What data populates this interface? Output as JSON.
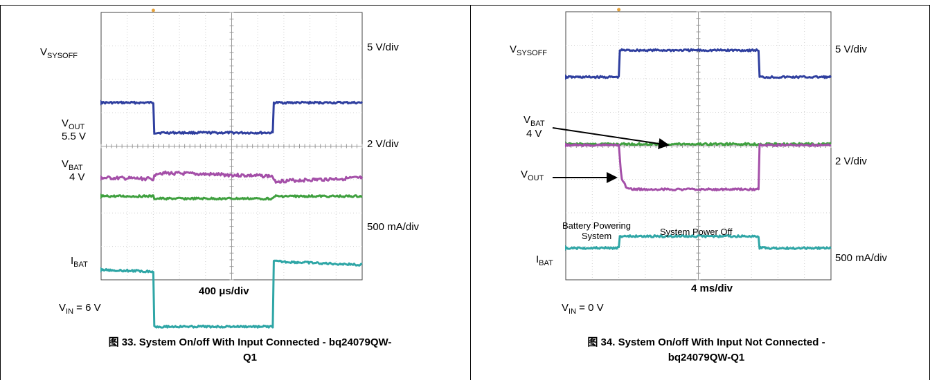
{
  "chart_data": [
    {
      "type": "line",
      "figure_label": "图 33. System On/off With Input Connected - bq24079QW-Q1",
      "figure_label_line1": "图 33. System On/off With Input Connected - bq24079QW-",
      "figure_label_line2": "Q1",
      "timebase": "400 μs/div",
      "condition": {
        "name": "V",
        "sub": "IN",
        "value": " = 6 V"
      },
      "divisions": {
        "x": 10,
        "y": 8
      },
      "series": [
        {
          "name": "V",
          "sub": "SYSOFF",
          "scale": "5 V/div",
          "color": "#2f3f9f",
          "points": [
            [
              0,
              2.7
            ],
            [
              2.0,
              2.7
            ],
            [
              2.0,
              3.6
            ],
            [
              6.6,
              3.6
            ],
            [
              6.6,
              2.7
            ],
            [
              10,
              2.7
            ]
          ],
          "noise": 0.03
        },
        {
          "name": "V",
          "sub": "OUT",
          "value": "5.5 V",
          "scale": "2 V/div",
          "color": "#a44fa8",
          "points": [
            [
              0,
              4.95
            ],
            [
              2.0,
              4.98
            ],
            [
              2.1,
              4.8
            ],
            [
              6.6,
              4.9
            ],
            [
              6.6,
              5.05
            ],
            [
              10,
              4.95
            ]
          ],
          "noise": 0.05
        },
        {
          "name": "V",
          "sub": "BAT",
          "value": "4 V",
          "scale": "",
          "color": "#3fa03f",
          "points": [
            [
              0,
              5.5
            ],
            [
              2.0,
              5.5
            ],
            [
              2.0,
              5.57
            ],
            [
              6.6,
              5.57
            ],
            [
              6.6,
              5.5
            ],
            [
              10,
              5.5
            ]
          ],
          "noise": 0.03
        },
        {
          "name": "I",
          "sub": "BAT",
          "scale": "500 mA/div",
          "color": "#2fa6a6",
          "points": [
            [
              0,
              7.7
            ],
            [
              2.0,
              7.75
            ],
            [
              2.0,
              9.4
            ],
            [
              6.6,
              9.4
            ],
            [
              6.6,
              7.45
            ],
            [
              10,
              7.55
            ]
          ],
          "noise": 0.03
        }
      ]
    },
    {
      "type": "line",
      "figure_label": "图 34. System On/off With Input Not Connected - bq24079QW-Q1",
      "figure_label_line1": "图 34. System On/off With Input Not Connected -",
      "figure_label_line2": "bq24079QW-Q1",
      "timebase": "4 ms/div",
      "condition": {
        "name": "V",
        "sub": "IN",
        "value": " = 0 V"
      },
      "divisions": {
        "x": 10,
        "y": 8
      },
      "annotations": [
        "Battery Powering System",
        "System Power Off"
      ],
      "annotation_lines": [
        [
          "Battery Powering",
          "System"
        ],
        [
          "System Power Off"
        ]
      ],
      "series": [
        {
          "name": "V",
          "sub": "SYSOFF",
          "scale": "5 V/div",
          "color": "#2f3f9f",
          "points": [
            [
              0,
              1.95
            ],
            [
              2.0,
              1.95
            ],
            [
              2.0,
              1.15
            ],
            [
              7.3,
              1.15
            ],
            [
              7.3,
              1.95
            ],
            [
              10,
              1.95
            ]
          ],
          "noise": 0.03
        },
        {
          "name": "V",
          "sub": "BAT",
          "value": "4 V",
          "scale": "2 V/div",
          "color": "#3fa03f",
          "points": [
            [
              0,
              3.95
            ],
            [
              10,
              3.95
            ]
          ],
          "noise": 0.03
        },
        {
          "name": "V",
          "sub": "OUT",
          "scale": "",
          "color": "#a44fa8",
          "points": [
            [
              0,
              3.98
            ],
            [
              2.0,
              3.98
            ],
            [
              2.1,
              5.0
            ],
            [
              2.3,
              5.25
            ],
            [
              2.5,
              5.3
            ],
            [
              7.3,
              5.3
            ],
            [
              7.3,
              3.98
            ],
            [
              10,
              3.98
            ]
          ],
          "noise": 0.03
        },
        {
          "name": "I",
          "sub": "BAT",
          "scale": "500 mA/div",
          "color": "#2fa6a6",
          "points": [
            [
              0,
              7.05
            ],
            [
              2.0,
              7.05
            ],
            [
              2.0,
              6.7
            ],
            [
              7.3,
              6.7
            ],
            [
              7.3,
              7.05
            ],
            [
              10,
              7.05
            ]
          ],
          "noise": 0.03
        }
      ]
    }
  ]
}
